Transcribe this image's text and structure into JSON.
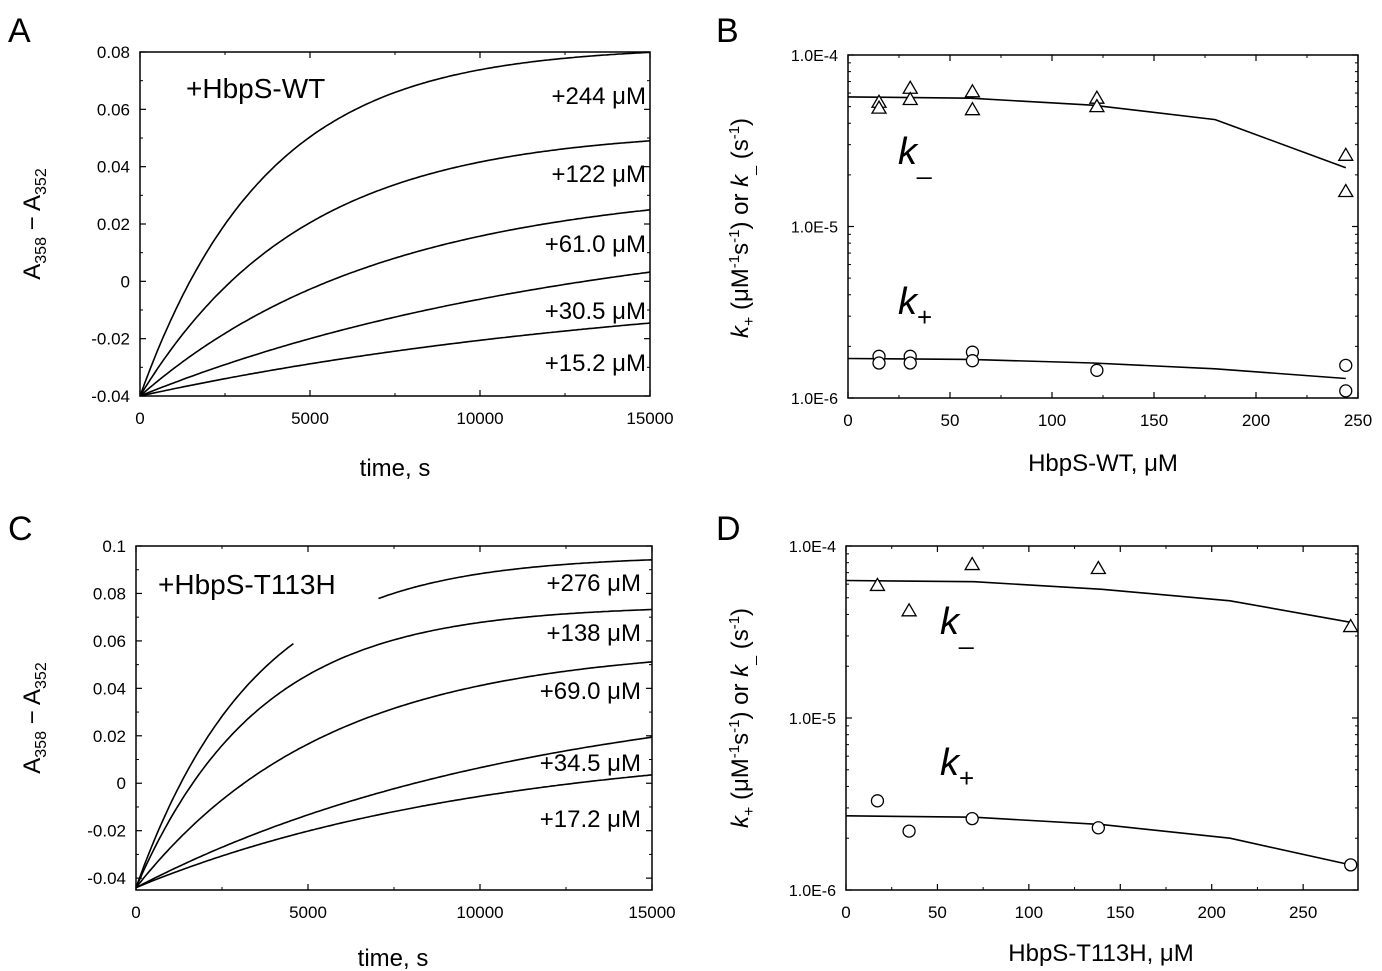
{
  "chart_data": [
    {
      "panel": "A",
      "type": "line",
      "series_label": "+HbpS-WT",
      "xlabel": "time, s",
      "ylabel": "A358 − A352",
      "ylabel_parts": {
        "a": "A",
        "s1": "358",
        "mid": " − A",
        "s2": "352"
      },
      "xlim": [
        0,
        15000
      ],
      "ylim": [
        -0.04,
        0.08
      ],
      "x_ticks": [
        0,
        5000,
        10000,
        15000
      ],
      "y_ticks": [
        -0.04,
        -0.02,
        0,
        0.02,
        0.04,
        0.06,
        0.08
      ],
      "y_tick_labels": [
        "-0.04",
        "-0.02",
        "0",
        "0.02",
        "0.04",
        "0.06",
        "0.08"
      ],
      "series": [
        {
          "name": "+244 μM",
          "y0": -0.04,
          "yinf": 0.082,
          "k": 0.00027
        },
        {
          "name": "+122 μM",
          "y0": -0.04,
          "yinf": 0.053,
          "k": 0.00021
        },
        {
          "name": "+61.0 μM",
          "y0": -0.04,
          "yinf": 0.034,
          "k": 0.00014
        },
        {
          "name": "+30.5 μM",
          "y0": -0.04,
          "yinf": 0.024,
          "k": 7.5e-05
        },
        {
          "name": "+15.2 μM",
          "y0": -0.04,
          "yinf": 0.002,
          "k": 6.21e-05
        }
      ]
    },
    {
      "panel": "B",
      "type": "scatter",
      "xlabel": "HbpS-WT, μM",
      "ylabel": "k+ (μM-1s-1) or k_ (s-1)",
      "ylabel_parts": {
        "k1": "k",
        "s1": "+",
        "t1": " (μM",
        "p1": "-1",
        "t2": "s",
        "p2": "-1",
        "t3": ") or ",
        "k2": "k",
        "s2": "_",
        "t4": " (s",
        "p3": "-1",
        "t5": ")"
      },
      "y_scale": "log",
      "xlim": [
        0,
        250
      ],
      "ylim": [
        1e-06,
        0.0001
      ],
      "x_ticks": [
        0,
        50,
        100,
        150,
        200,
        250
      ],
      "y_ticks": [
        1e-06,
        1e-05,
        0.0001
      ],
      "y_tick_labels": [
        "1.0E-6",
        "1.0E-5",
        "1.0E-4"
      ],
      "k_minus": {
        "k": "k",
        "sub": "_"
      },
      "k_plus": {
        "k": "k",
        "sub": "+"
      },
      "series": [
        {
          "name": "k_",
          "marker": "triangle",
          "points": [
            [
              15.2,
              5.3e-05
            ],
            [
              15.2,
              4.9e-05
            ],
            [
              30.5,
              6.4e-05
            ],
            [
              30.5,
              5.5e-05
            ],
            [
              61,
              6.1e-05
            ],
            [
              61,
              4.8e-05
            ],
            [
              122,
              5.6e-05
            ],
            [
              122,
              5e-05
            ],
            [
              244,
              2.6e-05
            ],
            [
              244,
              1.6e-05
            ]
          ],
          "fit": [
            [
              0,
              5.7e-05
            ],
            [
              60,
              5.6e-05
            ],
            [
              120,
              5.1e-05
            ],
            [
              180,
              4.2e-05
            ],
            [
              244,
              2.2e-05
            ]
          ]
        },
        {
          "name": "k+",
          "marker": "circle",
          "points": [
            [
              15.2,
              1.75e-06
            ],
            [
              15.2,
              1.6e-06
            ],
            [
              30.5,
              1.75e-06
            ],
            [
              30.5,
              1.6e-06
            ],
            [
              61,
              1.85e-06
            ],
            [
              61,
              1.65e-06
            ],
            [
              122,
              1.45e-06
            ],
            [
              244,
              1.55e-06
            ],
            [
              244,
              1.1e-06
            ]
          ],
          "fit": [
            [
              0,
              1.7e-06
            ],
            [
              60,
              1.68e-06
            ],
            [
              120,
              1.6e-06
            ],
            [
              180,
              1.48e-06
            ],
            [
              244,
              1.3e-06
            ]
          ]
        }
      ]
    },
    {
      "panel": "C",
      "type": "line",
      "series_label": "+HbpS-T113H",
      "xlabel": "time, s",
      "ylabel": "A358 − A352",
      "ylabel_parts": {
        "a": "A",
        "s1": "358",
        "mid": " − A",
        "s2": "352"
      },
      "xlim": [
        0,
        15000
      ],
      "ylim": [
        -0.045,
        0.1
      ],
      "x_ticks": [
        0,
        5000,
        10000,
        15000
      ],
      "y_ticks": [
        -0.04,
        -0.02,
        0,
        0.02,
        0.04,
        0.06,
        0.08,
        0.1
      ],
      "y_tick_labels": [
        "-0.04",
        "-0.02",
        "0",
        "0.02",
        "0.04",
        "0.06",
        "0.08",
        "0.1"
      ],
      "series": [
        {
          "name": "+276 μM",
          "y0": -0.044,
          "yinf": 0.096,
          "k": 0.00029,
          "gap": [
            4600,
            7000
          ]
        },
        {
          "name": "+138 μM",
          "y0": -0.044,
          "yinf": 0.075,
          "k": 0.00028
        },
        {
          "name": "+69.0 μM",
          "y0": -0.044,
          "yinf": 0.058,
          "k": 0.00018
        },
        {
          "name": "+34.5 μM",
          "y0": -0.044,
          "yinf": 0.043,
          "k": 8.7e-05
        },
        {
          "name": "+17.2 μM",
          "y0": -0.044,
          "yinf": 0.018,
          "k": 9.7e-05
        }
      ]
    },
    {
      "panel": "D",
      "type": "scatter",
      "xlabel": "HbpS-T113H, μM",
      "ylabel": "k+ (μM-1s-1) or k_ (s-1)",
      "ylabel_parts": {
        "k1": "k",
        "s1": "+",
        "t1": " (μM",
        "p1": "-1",
        "t2": "s",
        "p2": "-1",
        "t3": ") or ",
        "k2": "k",
        "s2": "_",
        "t4": " (s",
        "p3": "-1",
        "t5": ")"
      },
      "y_scale": "log",
      "xlim": [
        0,
        280
      ],
      "ylim": [
        1e-06,
        0.0001
      ],
      "x_ticks": [
        0,
        50,
        100,
        150,
        200,
        250
      ],
      "y_ticks": [
        1e-06,
        1e-05,
        0.0001
      ],
      "y_tick_labels": [
        "1.0E-6",
        "1.0E-5",
        "1.0E-4"
      ],
      "k_minus": {
        "k": "k",
        "sub": "_"
      },
      "k_plus": {
        "k": "k",
        "sub": "+"
      },
      "series": [
        {
          "name": "k_",
          "marker": "triangle",
          "points": [
            [
              17.2,
              5.9e-05
            ],
            [
              34.5,
              4.2e-05
            ],
            [
              69,
              7.8e-05
            ],
            [
              138,
              7.4e-05
            ],
            [
              276,
              3.4e-05
            ]
          ],
          "fit": [
            [
              0,
              6.3e-05
            ],
            [
              70,
              6.2e-05
            ],
            [
              140,
              5.6e-05
            ],
            [
              210,
              4.8e-05
            ],
            [
              276,
              3.6e-05
            ]
          ]
        },
        {
          "name": "k+",
          "marker": "circle",
          "points": [
            [
              17.2,
              3.3e-06
            ],
            [
              34.5,
              2.2e-06
            ],
            [
              69,
              2.6e-06
            ],
            [
              138,
              2.3e-06
            ],
            [
              276,
              1.4e-06
            ]
          ],
          "fit": [
            [
              0,
              2.7e-06
            ],
            [
              70,
              2.65e-06
            ],
            [
              140,
              2.4e-06
            ],
            [
              210,
              2e-06
            ],
            [
              276,
              1.4e-06
            ]
          ]
        }
      ]
    }
  ]
}
